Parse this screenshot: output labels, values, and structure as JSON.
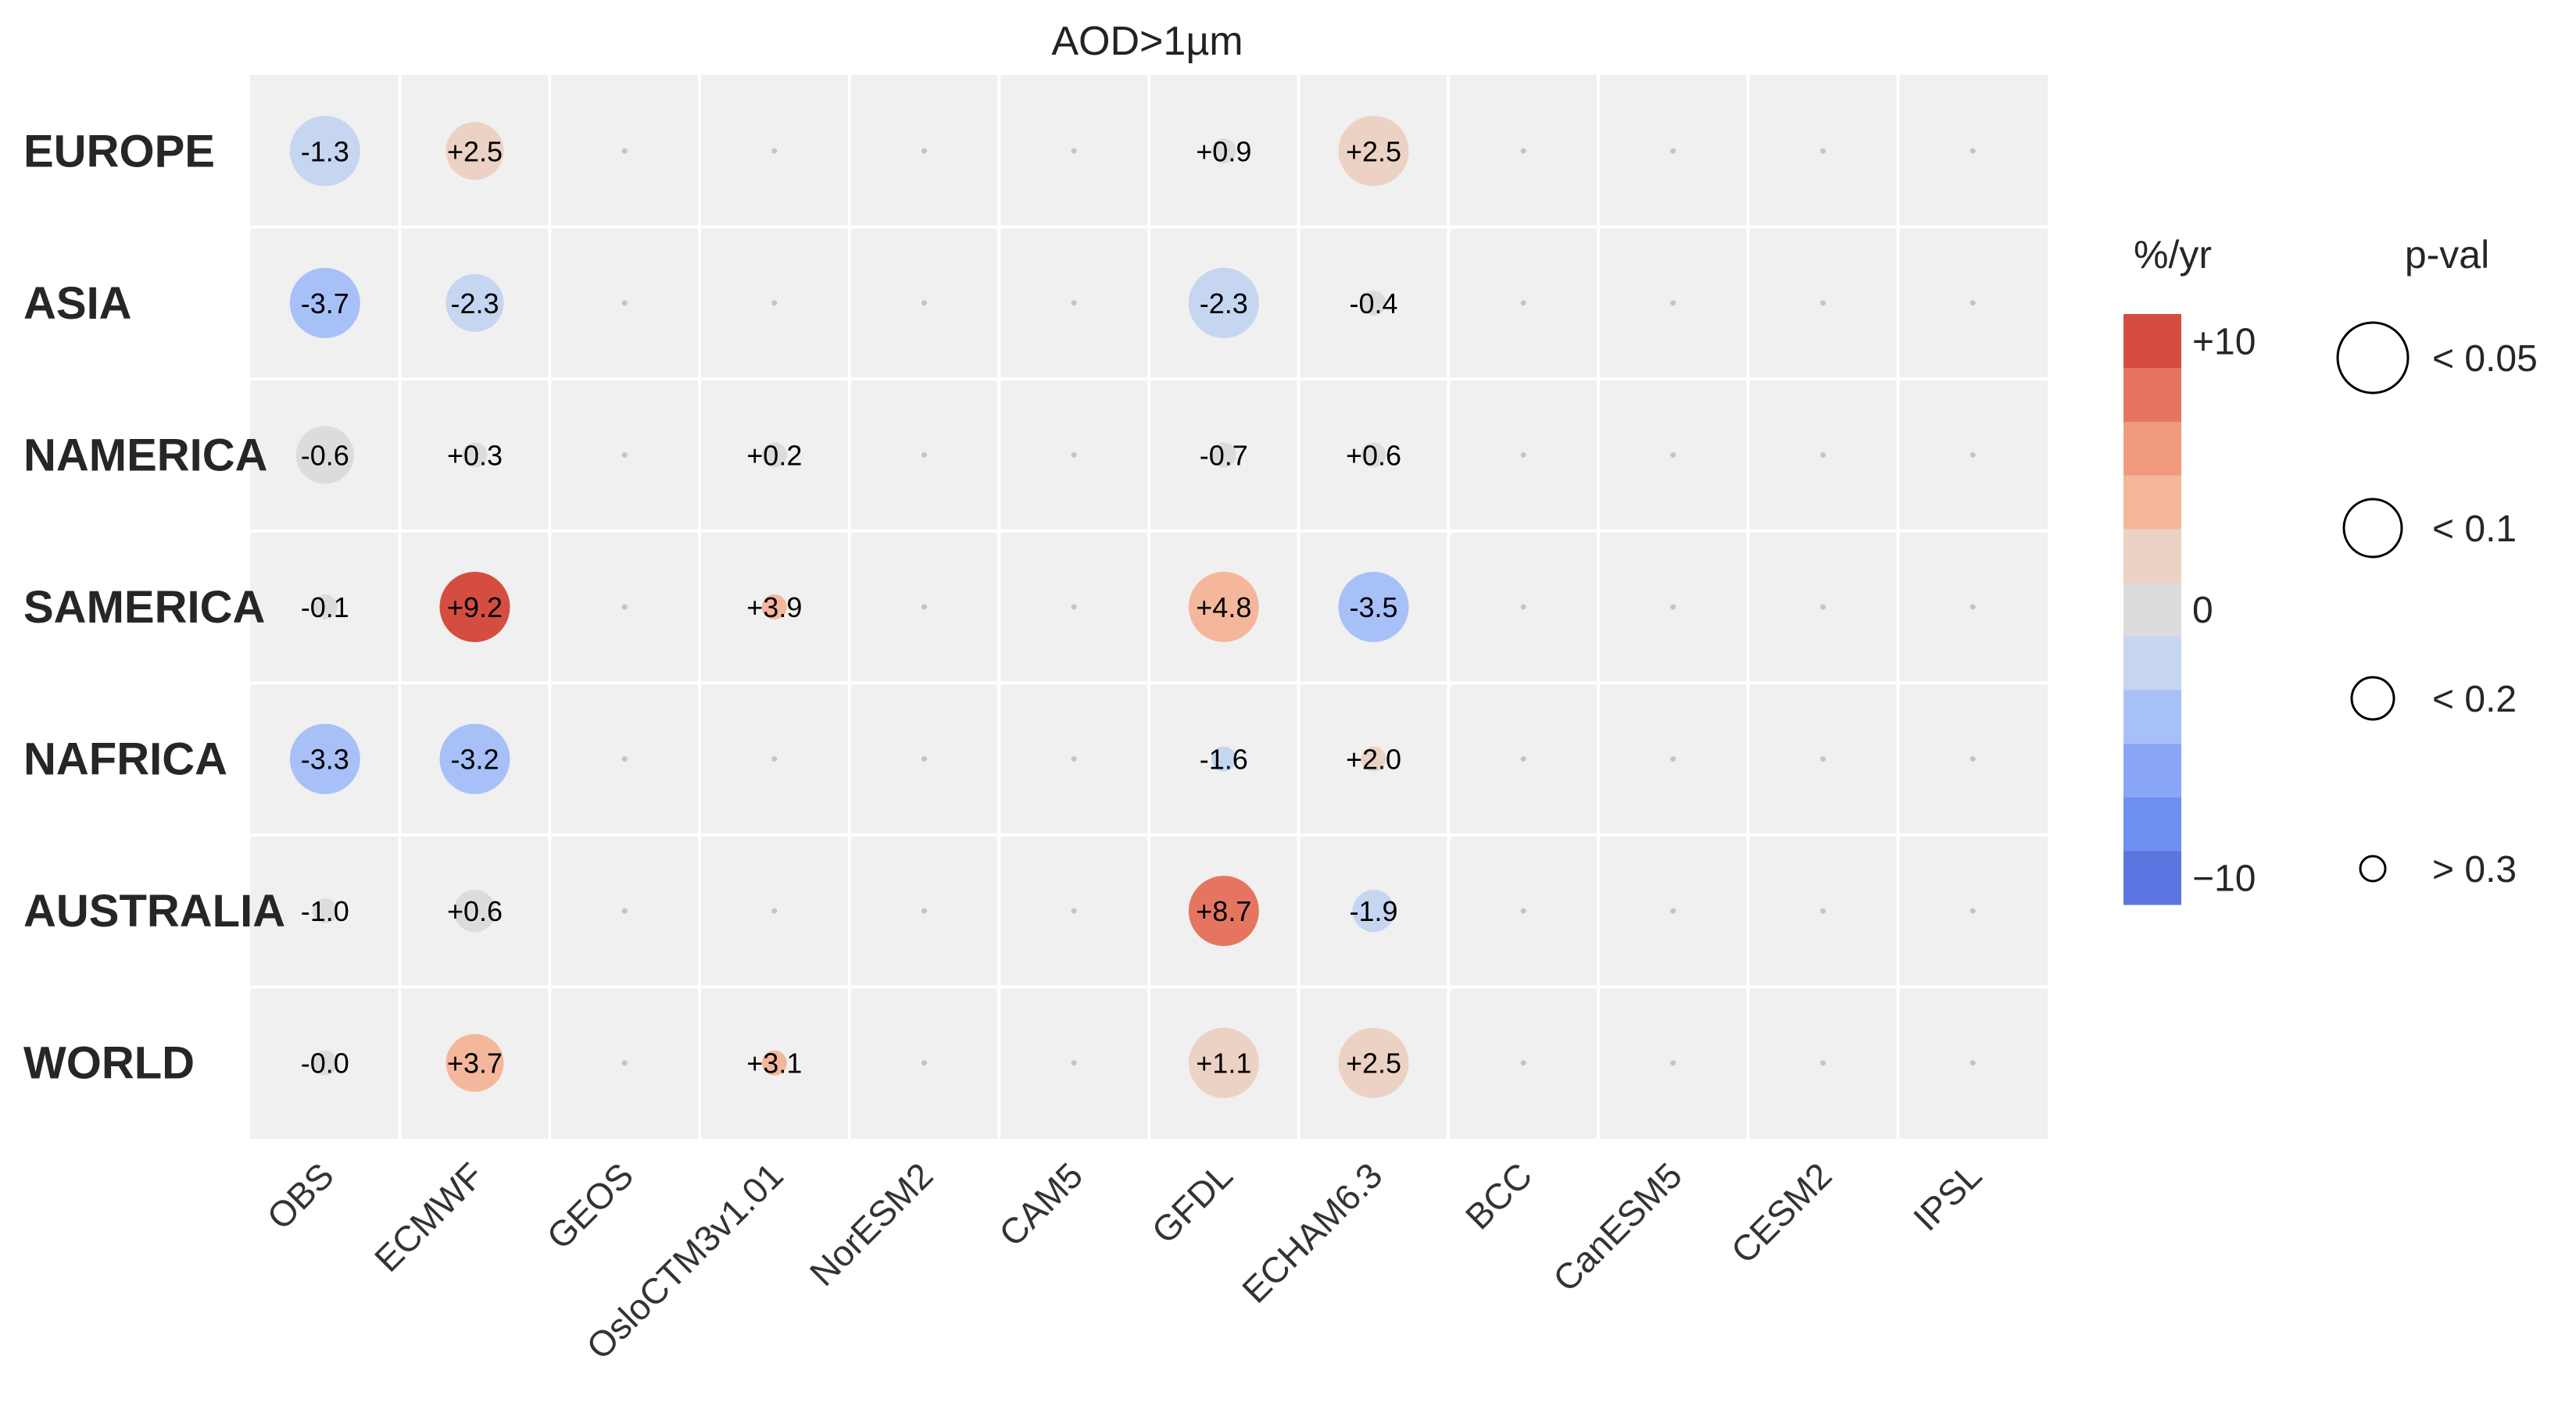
{
  "chart_data": {
    "type": "heatmap",
    "title": "AOD>1µm",
    "rows": [
      "EUROPE",
      "ASIA",
      "NAMERICA",
      "SAMERICA",
      "NAFRICA",
      "AUSTRALIA",
      "WORLD"
    ],
    "columns": [
      "OBS",
      "ECMWF",
      "GEOS",
      "OsloCTM3v1.01",
      "NorESM2",
      "CAM5",
      "GFDL",
      "ECHAM6.3",
      "BCC",
      "CanESM5",
      "CESM2",
      "IPSL"
    ],
    "cells": [
      {
        "row": "EUROPE",
        "col": "OBS",
        "value": -1.3,
        "label": "-1.3",
        "pval": "< 0.05"
      },
      {
        "row": "EUROPE",
        "col": "ECMWF",
        "value": 2.5,
        "label": "+2.5",
        "pval": "< 0.1"
      },
      {
        "row": "EUROPE",
        "col": "GFDL",
        "value": 0.9,
        "label": "+0.9",
        "pval": "> 0.3"
      },
      {
        "row": "EUROPE",
        "col": "ECHAM6.3",
        "value": 2.5,
        "label": "+2.5",
        "pval": "< 0.05"
      },
      {
        "row": "ASIA",
        "col": "OBS",
        "value": -3.7,
        "label": "-3.7",
        "pval": "< 0.05"
      },
      {
        "row": "ASIA",
        "col": "ECMWF",
        "value": -2.3,
        "label": "-2.3",
        "pval": "< 0.1"
      },
      {
        "row": "ASIA",
        "col": "GFDL",
        "value": -2.3,
        "label": "-2.3",
        "pval": "< 0.05"
      },
      {
        "row": "ASIA",
        "col": "ECHAM6.3",
        "value": -0.4,
        "label": "-0.4",
        "pval": "> 0.3"
      },
      {
        "row": "NAMERICA",
        "col": "OBS",
        "value": -0.6,
        "label": "-0.6",
        "pval": "< 0.1"
      },
      {
        "row": "NAMERICA",
        "col": "ECMWF",
        "value": 0.3,
        "label": "+0.3",
        "pval": "> 0.3"
      },
      {
        "row": "NAMERICA",
        "col": "OsloCTM3v1.01",
        "value": 0.2,
        "label": "+0.2",
        "pval": "> 0.3"
      },
      {
        "row": "NAMERICA",
        "col": "GFDL",
        "value": -0.7,
        "label": "-0.7",
        "pval": "> 0.3"
      },
      {
        "row": "NAMERICA",
        "col": "ECHAM6.3",
        "value": 0.6,
        "label": "+0.6",
        "pval": "> 0.3"
      },
      {
        "row": "SAMERICA",
        "col": "OBS",
        "value": -0.1,
        "label": "-0.1",
        "pval": "> 0.3"
      },
      {
        "row": "SAMERICA",
        "col": "ECMWF",
        "value": 9.2,
        "label": "+9.2",
        "pval": "< 0.05"
      },
      {
        "row": "SAMERICA",
        "col": "OsloCTM3v1.01",
        "value": 3.9,
        "label": "+3.9",
        "pval": "> 0.3"
      },
      {
        "row": "SAMERICA",
        "col": "GFDL",
        "value": 4.8,
        "label": "+4.8",
        "pval": "< 0.05"
      },
      {
        "row": "SAMERICA",
        "col": "ECHAM6.3",
        "value": -3.5,
        "label": "-3.5",
        "pval": "< 0.05"
      },
      {
        "row": "NAFRICA",
        "col": "OBS",
        "value": -3.3,
        "label": "-3.3",
        "pval": "< 0.05"
      },
      {
        "row": "NAFRICA",
        "col": "ECMWF",
        "value": -3.2,
        "label": "-3.2",
        "pval": "< 0.05"
      },
      {
        "row": "NAFRICA",
        "col": "GFDL",
        "value": -1.6,
        "label": "-1.6",
        "pval": "> 0.3"
      },
      {
        "row": "NAFRICA",
        "col": "ECHAM6.3",
        "value": 2.0,
        "label": "+2.0",
        "pval": "> 0.3"
      },
      {
        "row": "AUSTRALIA",
        "col": "OBS",
        "value": -1.0,
        "label": "-1.0",
        "pval": "> 0.3"
      },
      {
        "row": "AUSTRALIA",
        "col": "ECMWF",
        "value": 0.6,
        "label": "+0.6",
        "pval": "< 0.2"
      },
      {
        "row": "AUSTRALIA",
        "col": "GFDL",
        "value": 8.7,
        "label": "+8.7",
        "pval": "< 0.05"
      },
      {
        "row": "AUSTRALIA",
        "col": "ECHAM6.3",
        "value": -1.9,
        "label": "-1.9",
        "pval": "< 0.2"
      },
      {
        "row": "WORLD",
        "col": "OBS",
        "value": -0.0,
        "label": "-0.0",
        "pval": "> 0.3"
      },
      {
        "row": "WORLD",
        "col": "ECMWF",
        "value": 3.7,
        "label": "+3.7",
        "pval": "< 0.1"
      },
      {
        "row": "WORLD",
        "col": "OsloCTM3v1.01",
        "value": 3.1,
        "label": "+3.1",
        "pval": "> 0.3"
      },
      {
        "row": "WORLD",
        "col": "GFDL",
        "value": 1.1,
        "label": "+1.1",
        "pval": "< 0.05"
      },
      {
        "row": "WORLD",
        "col": "ECHAM6.3",
        "value": 2.5,
        "label": "+2.5",
        "pval": "< 0.05"
      }
    ],
    "colorbar": {
      "title": "%/yr",
      "range": [
        -11,
        11
      ],
      "ticks": [
        {
          "value": 10,
          "label": "+10"
        },
        {
          "value": 0,
          "label": "0"
        },
        {
          "value": -10,
          "label": "−10"
        }
      ],
      "colors": [
        "#5b75e0",
        "#6e8ef0",
        "#8aa6f7",
        "#a8c0f8",
        "#c6d5f0",
        "#dcdcdc",
        "#ecd2c4",
        "#f4b79c",
        "#f09a7d",
        "#e57561",
        "#d54d41"
      ]
    },
    "size_legend": {
      "title": "p-val",
      "levels": [
        "< 0.05",
        "< 0.1",
        "< 0.2",
        "> 0.3"
      ]
    },
    "legend_position": "right",
    "grid": true
  }
}
